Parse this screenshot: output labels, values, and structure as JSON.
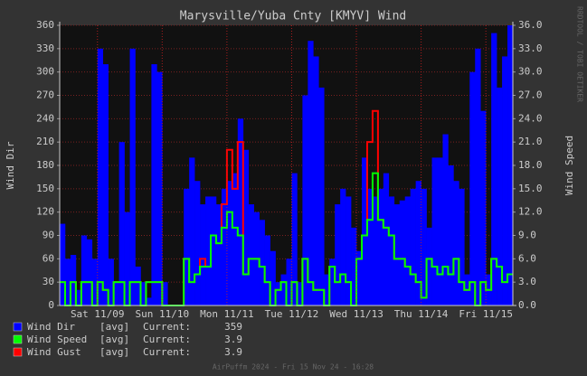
{
  "chart_data": {
    "type": "rrd",
    "title": "Marysville/Yuba Cnty [KMYV] Wind",
    "y_label": "Wind Dir",
    "y2_label": "Wind Speed",
    "watermark": "RRDTOOL / TOBI OETIKER",
    "footer": "AirPuffm 2024 - Fri 15 Nov 24 - 16:28",
    "categories": [
      null,
      null,
      null,
      null,
      null,
      null,
      null,
      "Sat 11/09",
      null,
      null,
      null,
      null,
      null,
      null,
      null,
      null,
      null,
      null,
      null,
      "Sun 11/10",
      null,
      null,
      null,
      null,
      null,
      null,
      null,
      null,
      null,
      null,
      null,
      "Mon 11/11",
      null,
      null,
      null,
      null,
      null,
      null,
      null,
      null,
      null,
      null,
      null,
      "Tue 11/12",
      null,
      null,
      null,
      null,
      null,
      null,
      null,
      null,
      null,
      null,
      null,
      "Wed 11/13",
      null,
      null,
      null,
      null,
      null,
      null,
      null,
      null,
      null,
      null,
      null,
      "Thu 11/14",
      null,
      null,
      null,
      null,
      null,
      null,
      null,
      null,
      null,
      null,
      null,
      "Fri 11/15",
      null,
      null,
      null,
      null
    ],
    "ylim": [
      0,
      360
    ],
    "yticks": [
      0,
      30,
      60,
      90,
      120,
      150,
      180,
      210,
      240,
      270,
      300,
      330,
      360
    ],
    "y2lim": [
      0,
      36
    ],
    "y2ticks": [
      {
        "value": 0,
        "label": "0.0"
      },
      {
        "value": 3,
        "label": "3.0"
      },
      {
        "value": 6,
        "label": "6.0"
      },
      {
        "value": 9,
        "label": "9.0"
      },
      {
        "value": 12,
        "label": "12.0"
      },
      {
        "value": 15,
        "label": "15.0"
      },
      {
        "value": 18,
        "label": "18.0"
      },
      {
        "value": 21,
        "label": "21.0"
      },
      {
        "value": 24,
        "label": "24.0"
      },
      {
        "value": 27,
        "label": "27.0"
      },
      {
        "value": 30,
        "label": "30.0"
      },
      {
        "value": 33,
        "label": "33.0"
      },
      {
        "value": 36,
        "label": "36.0"
      }
    ],
    "grid": true,
    "series": [
      {
        "name": "Wind Dir",
        "stat": "[avg]",
        "current_label": "Current:",
        "current": 359,
        "color": "#0000ff",
        "style": "area",
        "values": [
          105,
          60,
          65,
          20,
          90,
          85,
          60,
          330,
          310,
          60,
          30,
          210,
          120,
          330,
          50,
          30,
          10,
          310,
          300,
          30,
          0,
          0,
          0,
          150,
          190,
          160,
          130,
          140,
          140,
          130,
          150,
          160,
          170,
          240,
          200,
          130,
          120,
          110,
          90,
          70,
          30,
          40,
          60,
          170,
          30,
          270,
          340,
          320,
          280,
          40,
          60,
          130,
          150,
          140,
          100,
          70,
          190,
          150,
          140,
          150,
          170,
          140,
          130,
          135,
          140,
          150,
          160,
          150,
          100,
          190,
          190,
          220,
          180,
          160,
          150,
          40,
          300,
          330,
          250,
          40,
          350,
          280,
          320,
          360
        ]
      },
      {
        "name": "Wind Speed",
        "stat": "[avg]",
        "current_label": "Current:",
        "current": 3.9,
        "color": "#00ff00",
        "style": "line",
        "axis": "y2",
        "values": [
          3,
          0,
          3,
          0,
          3,
          3,
          0,
          3,
          2,
          0,
          3,
          3,
          0,
          3,
          3,
          0,
          3,
          3,
          3,
          0,
          0,
          0,
          0,
          6,
          3,
          4,
          5,
          5,
          9,
          8,
          10,
          12,
          10,
          9,
          4,
          6,
          6,
          5,
          3,
          0,
          2,
          3,
          0,
          3,
          0,
          6,
          3,
          2,
          2,
          0,
          5,
          3,
          4,
          3,
          0,
          6,
          9,
          11,
          17,
          11,
          10,
          9,
          6,
          6,
          5,
          4,
          3,
          1,
          6,
          5,
          4,
          5,
          4,
          6,
          3,
          2,
          3,
          0,
          3,
          2,
          6,
          5,
          3,
          4
        ]
      },
      {
        "name": "Wind Gust",
        "stat": "[avg]",
        "current_label": "Current:",
        "current": 3.9,
        "color": "#ff0000",
        "style": "line",
        "axis": "y2",
        "values": [
          3,
          0,
          3,
          0,
          3,
          3,
          0,
          3,
          2,
          0,
          3,
          3,
          0,
          3,
          3,
          0,
          3,
          3,
          3,
          0,
          0,
          0,
          0,
          6,
          3,
          4,
          6,
          5,
          9,
          8,
          13,
          20,
          15,
          21,
          4,
          6,
          6,
          5,
          3,
          0,
          2,
          3,
          0,
          3,
          0,
          6,
          3,
          2,
          2,
          0,
          5,
          3,
          4,
          3,
          0,
          6,
          9,
          21,
          25,
          11,
          10,
          9,
          6,
          6,
          5,
          4,
          3,
          1,
          6,
          5,
          4,
          5,
          4,
          6,
          3,
          2,
          3,
          0,
          3,
          2,
          6,
          5,
          3,
          4
        ]
      }
    ]
  }
}
